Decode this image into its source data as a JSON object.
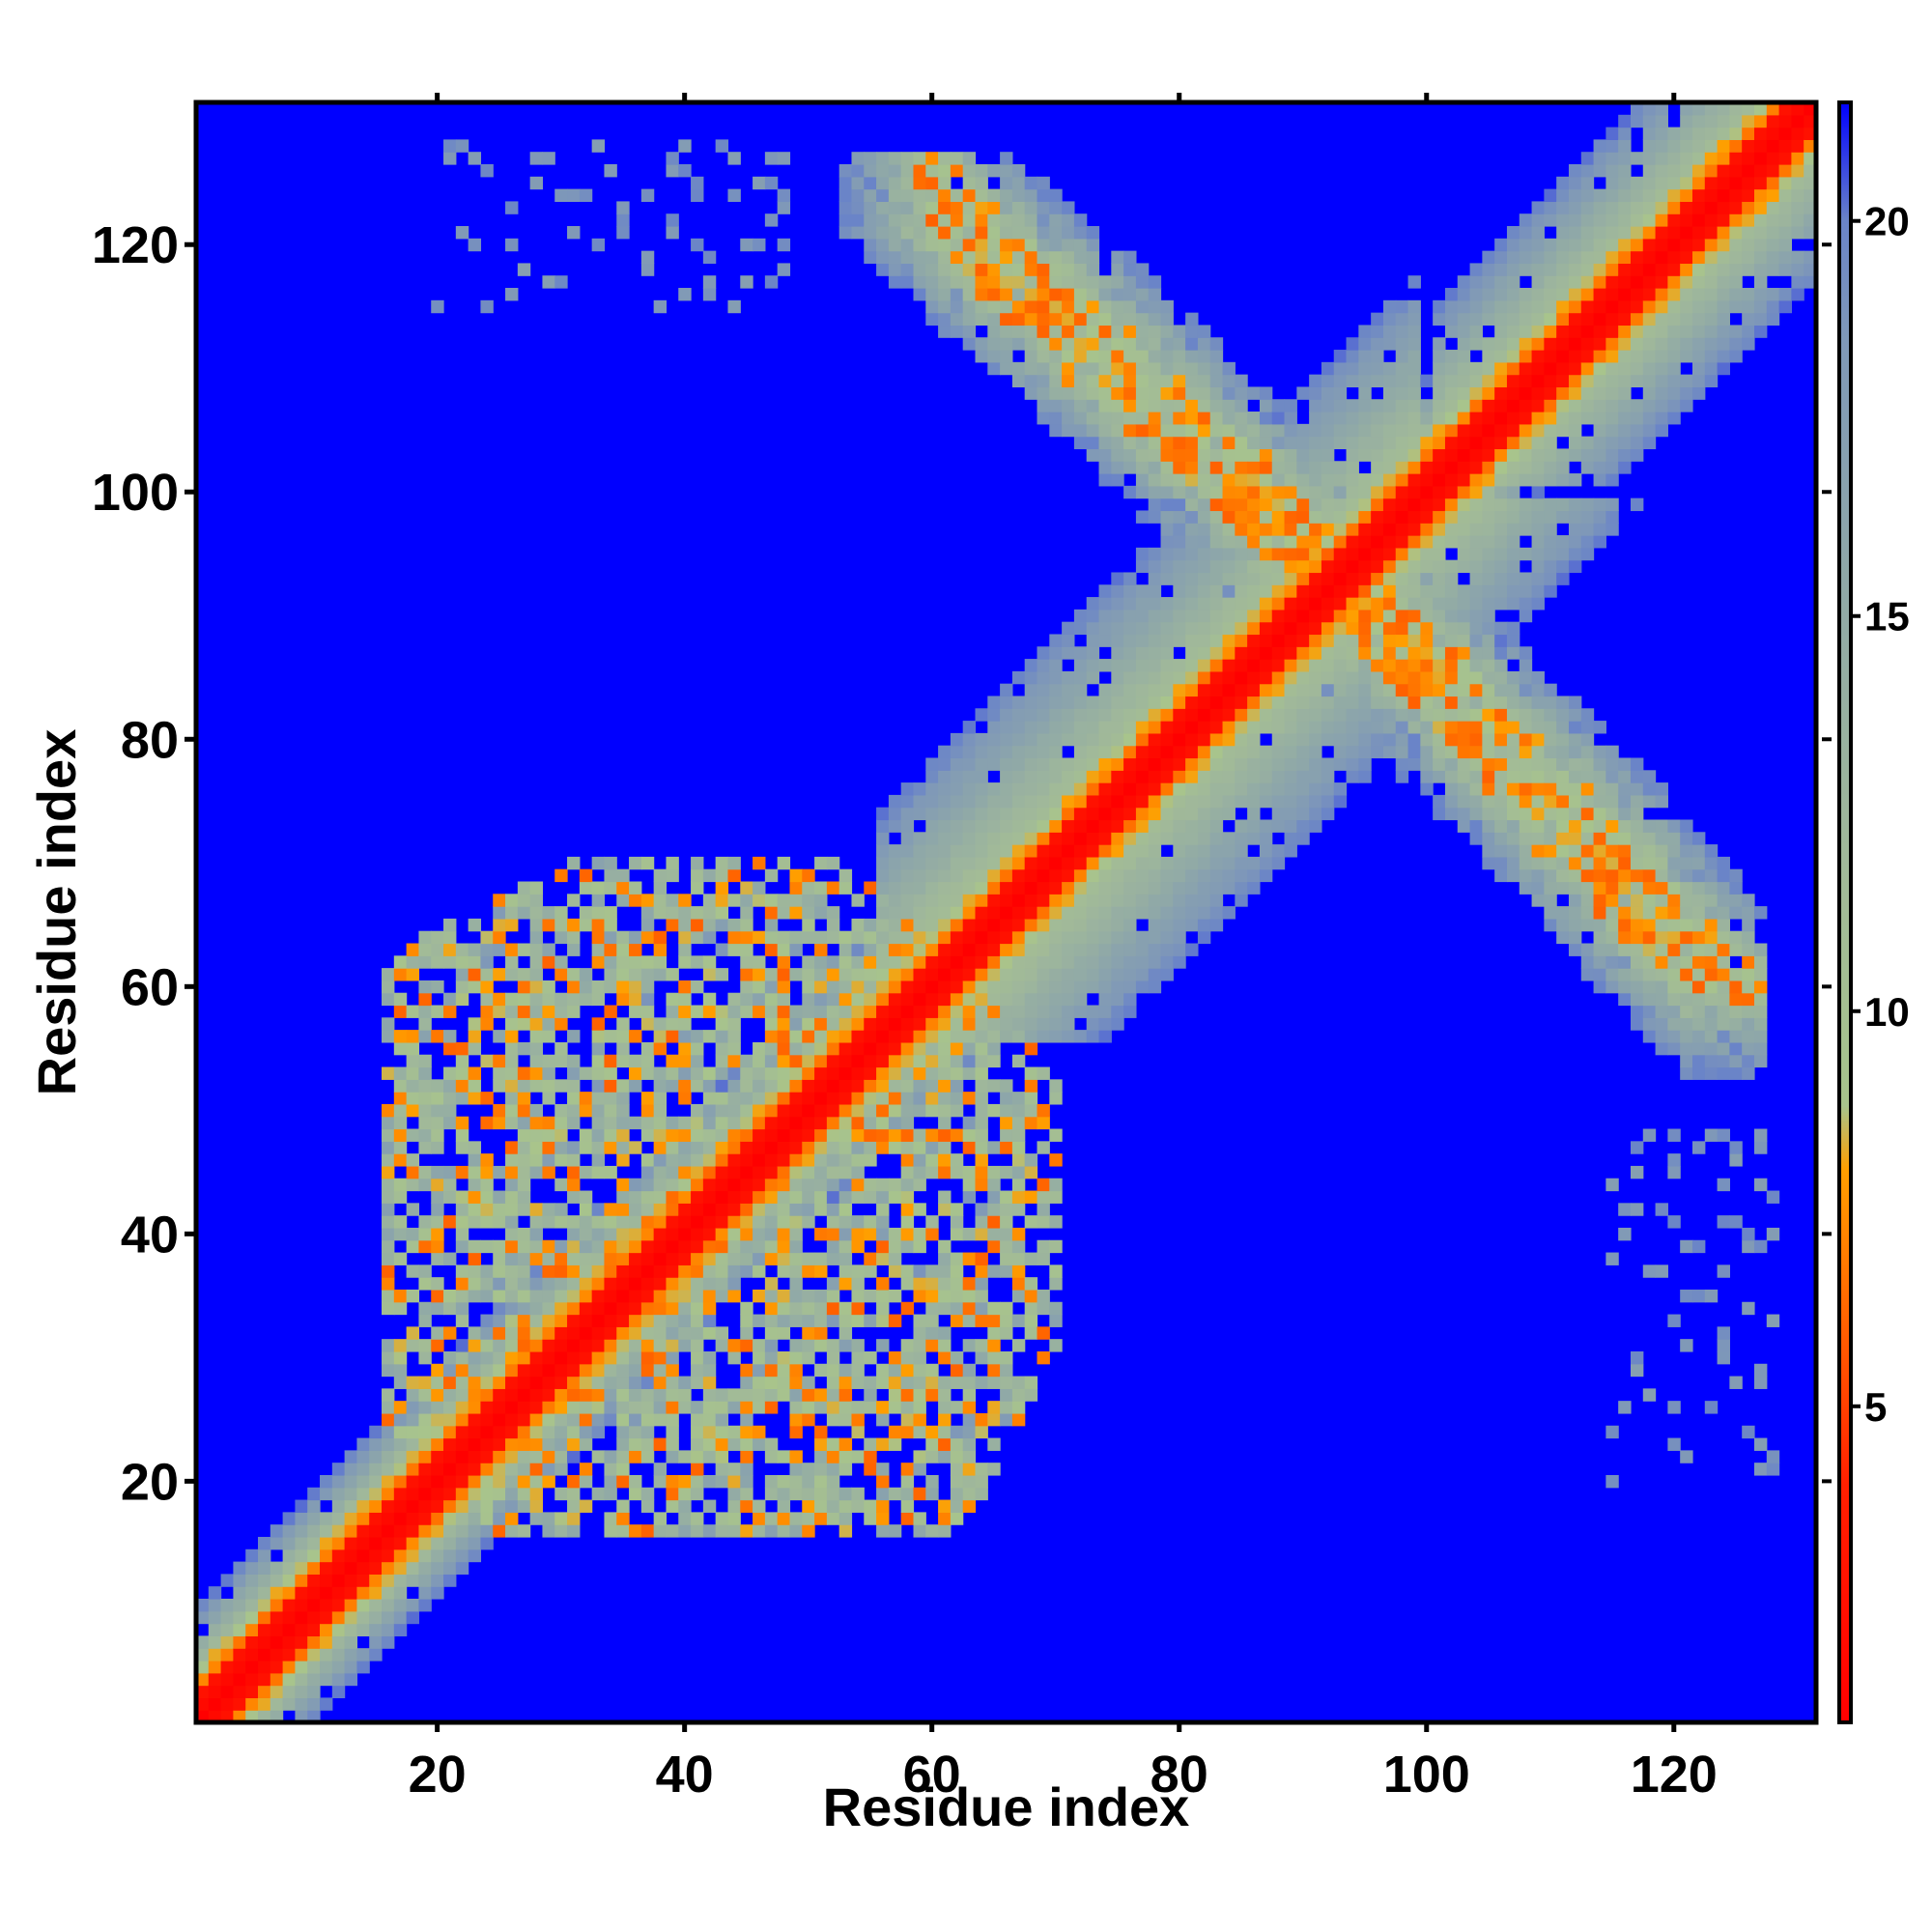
{
  "chart_data": {
    "type": "heatmap",
    "title": "",
    "xlabel": "Residue index",
    "ylabel": "Residue index",
    "x_range": [
      1,
      131
    ],
    "y_range": [
      1,
      131
    ],
    "x_ticks": [
      20,
      40,
      60,
      80,
      100,
      120
    ],
    "y_ticks": [
      20,
      40,
      60,
      80,
      100,
      120
    ],
    "x_tick_labels": [
      "20",
      "40",
      "60",
      "80",
      "100",
      "120"
    ],
    "y_tick_labels": [
      "20",
      "40",
      "60",
      "80",
      "100",
      "120"
    ],
    "grid": false,
    "colorbar": {
      "placement": "right",
      "range": [
        1,
        21.5
      ],
      "ticks": [
        5,
        10,
        15,
        20
      ],
      "tick_labels": [
        "5",
        "10",
        "15",
        "20"
      ],
      "stops": [
        {
          "value": 1.0,
          "color": "#ff0000"
        },
        {
          "value": 4.0,
          "color": "#ff2000"
        },
        {
          "value": 6.0,
          "color": "#ff6000"
        },
        {
          "value": 8.0,
          "color": "#ff9f00"
        },
        {
          "value": 8.8,
          "color": "#a8c48c"
        },
        {
          "value": 12.0,
          "color": "#a0b89a"
        },
        {
          "value": 15.5,
          "color": "#8fa8a8"
        },
        {
          "value": 18.5,
          "color": "#7f98b8"
        },
        {
          "value": 20.0,
          "color": "#6a84c8"
        },
        {
          "value": 21.5,
          "color": "#0000ff"
        }
      ]
    },
    "background_value": 21.5,
    "colors": {
      "background": "#0000ff",
      "close": "#ff0000",
      "mid": "#ff9f00",
      "far": "#8fa8a8"
    },
    "symmetric": true,
    "regions": [
      {
        "name": "main diagonal",
        "from": [
          1,
          1
        ],
        "to": [
          131,
          131
        ],
        "contact_band": 2,
        "halo": 5,
        "near_range": [
          1,
          4
        ],
        "halo_range": [
          11,
          19.5
        ]
      },
      {
        "name": "N-terminal domain",
        "x_range": [
          16,
          70
        ],
        "y_range": [
          16,
          70
        ],
        "value_range": [
          6,
          19.5
        ],
        "density": 0.72
      },
      {
        "name": "anti-parallel strand 60-125 / 125-60",
        "from": [
          60,
          124
        ],
        "to": [
          93,
          93
        ],
        "width": 7,
        "value_range": [
          6,
          20
        ],
        "density": 0.7
      },
      {
        "name": "long-range 20-48 / 115-128",
        "x_range": [
          20,
          48
        ],
        "y_range": [
          115,
          128
        ],
        "value_range": [
          17,
          20
        ],
        "density": 0.3
      }
    ]
  }
}
